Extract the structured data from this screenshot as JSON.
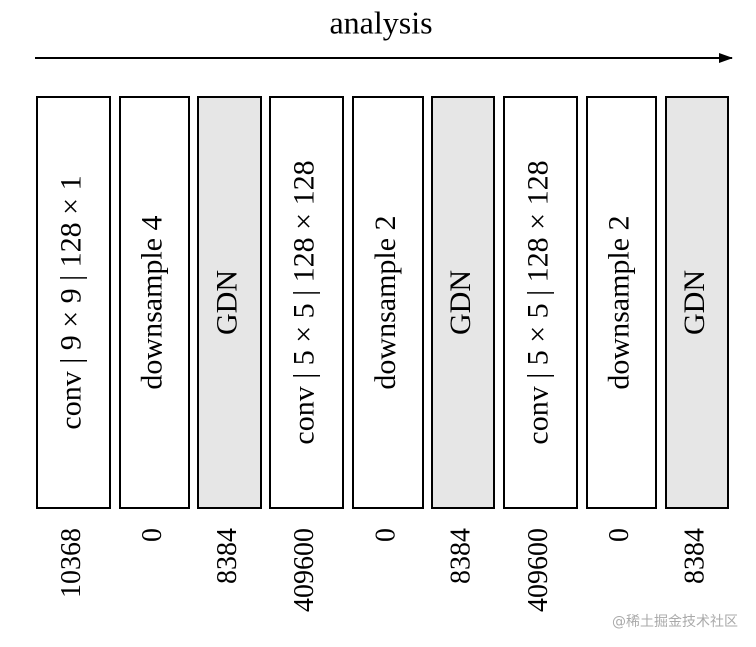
{
  "title": "analysis",
  "blocks": [
    {
      "label": "conv | 9 × 9 | 128 × 1",
      "params": 10368,
      "kind": "layer"
    },
    {
      "label": "downsample 4",
      "params": 0,
      "kind": "layer"
    },
    {
      "label": "GDN",
      "params": 8384,
      "kind": "norm"
    },
    {
      "label": "conv | 5 × 5 | 128 × 128",
      "params": 409600,
      "kind": "layer"
    },
    {
      "label": "downsample 2",
      "params": 0,
      "kind": "layer"
    },
    {
      "label": "GDN",
      "params": 8384,
      "kind": "norm"
    },
    {
      "label": "conv | 5 × 5 | 128 × 128",
      "params": 409600,
      "kind": "layer"
    },
    {
      "label": "downsample 2",
      "params": 0,
      "kind": "layer"
    },
    {
      "label": "GDN",
      "params": 8384,
      "kind": "norm"
    }
  ],
  "watermark": "@稀土掘金技术社区"
}
